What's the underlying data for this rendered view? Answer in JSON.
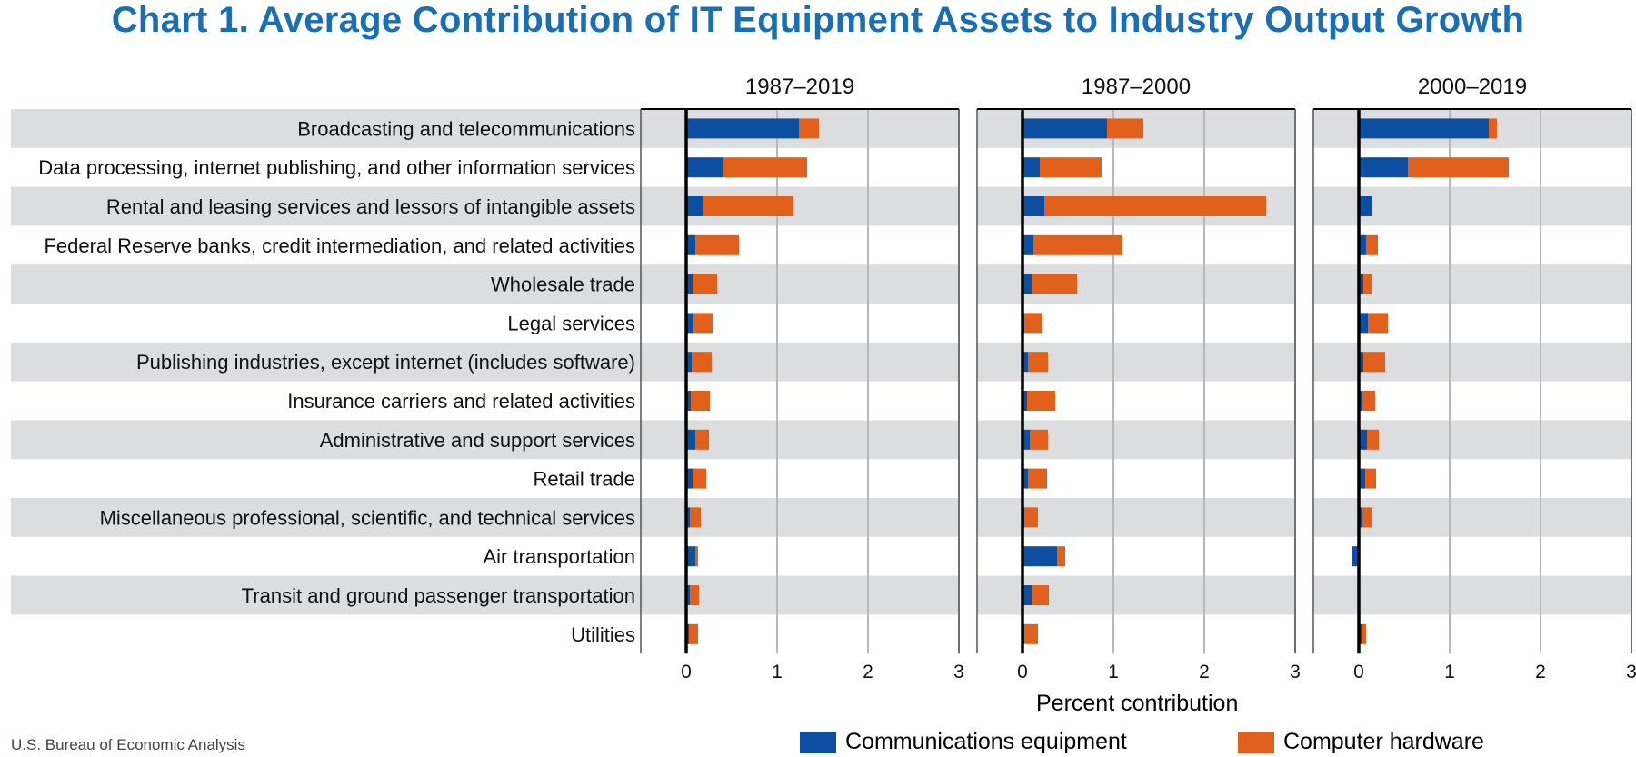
{
  "chart_data": {
    "type": "bar",
    "stacked": true,
    "orientation": "horizontal",
    "title": "Chart 1. Average Contribution of IT Equipment Assets to Industry Output Growth",
    "xlabel": "Percent contribution",
    "source": "U.S. Bureau of Economic Analysis",
    "xlim": [
      -0.5,
      3
    ],
    "xticks": [
      "0",
      "1",
      "2",
      "3"
    ],
    "colors": {
      "Communications equipment": "#0b4ea2",
      "Computer hardware": "#e0601c"
    },
    "series_names": [
      "Communications equipment",
      "Computer hardware"
    ],
    "categories": [
      "Broadcasting and telecommunications",
      "Data processing, internet publishing, and other information services",
      "Rental and leasing services and lessors of intangible assets",
      "Federal Reserve banks, credit intermediation, and related activities",
      "Wholesale trade",
      "Legal services",
      "Publishing industries, except internet (includes software)",
      "Insurance carriers and related activities",
      "Administrative and support services",
      "Retail trade",
      "Miscellaneous professional, scientific, and technical services",
      "Air transportation",
      "Transit and ground passenger transportation",
      "Utilities"
    ],
    "panels": [
      {
        "title": "1987–2019",
        "series": [
          {
            "name": "Communications equipment",
            "values": [
              1.24,
              0.4,
              0.18,
              0.1,
              0.07,
              0.08,
              0.06,
              0.05,
              0.1,
              0.07,
              0.04,
              0.1,
              0.04,
              0.03
            ]
          },
          {
            "name": "Computer hardware",
            "values": [
              0.22,
              0.93,
              1.0,
              0.48,
              0.27,
              0.21,
              0.22,
              0.21,
              0.15,
              0.15,
              0.12,
              0.03,
              0.1,
              0.1
            ]
          }
        ]
      },
      {
        "title": "1987–2000",
        "series": [
          {
            "name": "Communications equipment",
            "values": [
              0.93,
              0.19,
              0.24,
              0.12,
              0.11,
              0.02,
              0.06,
              0.05,
              0.08,
              0.06,
              0.02,
              0.38,
              0.1,
              0.02
            ]
          },
          {
            "name": "Computer hardware",
            "values": [
              0.4,
              0.68,
              2.44,
              0.98,
              0.49,
              0.2,
              0.22,
              0.31,
              0.2,
              0.21,
              0.15,
              0.09,
              0.19,
              0.15
            ]
          }
        ]
      },
      {
        "title": "2000–2019",
        "series": [
          {
            "name": "Communications equipment",
            "values": [
              1.43,
              0.54,
              0.14,
              0.08,
              0.05,
              0.1,
              0.05,
              0.04,
              0.09,
              0.07,
              0.04,
              -0.08,
              0.0,
              0.03
            ]
          },
          {
            "name": "Computer hardware",
            "values": [
              0.09,
              1.11,
              0.01,
              0.13,
              0.1,
              0.22,
              0.24,
              0.14,
              0.13,
              0.12,
              0.1,
              0.0,
              0.0,
              0.05
            ]
          }
        ]
      }
    ]
  }
}
